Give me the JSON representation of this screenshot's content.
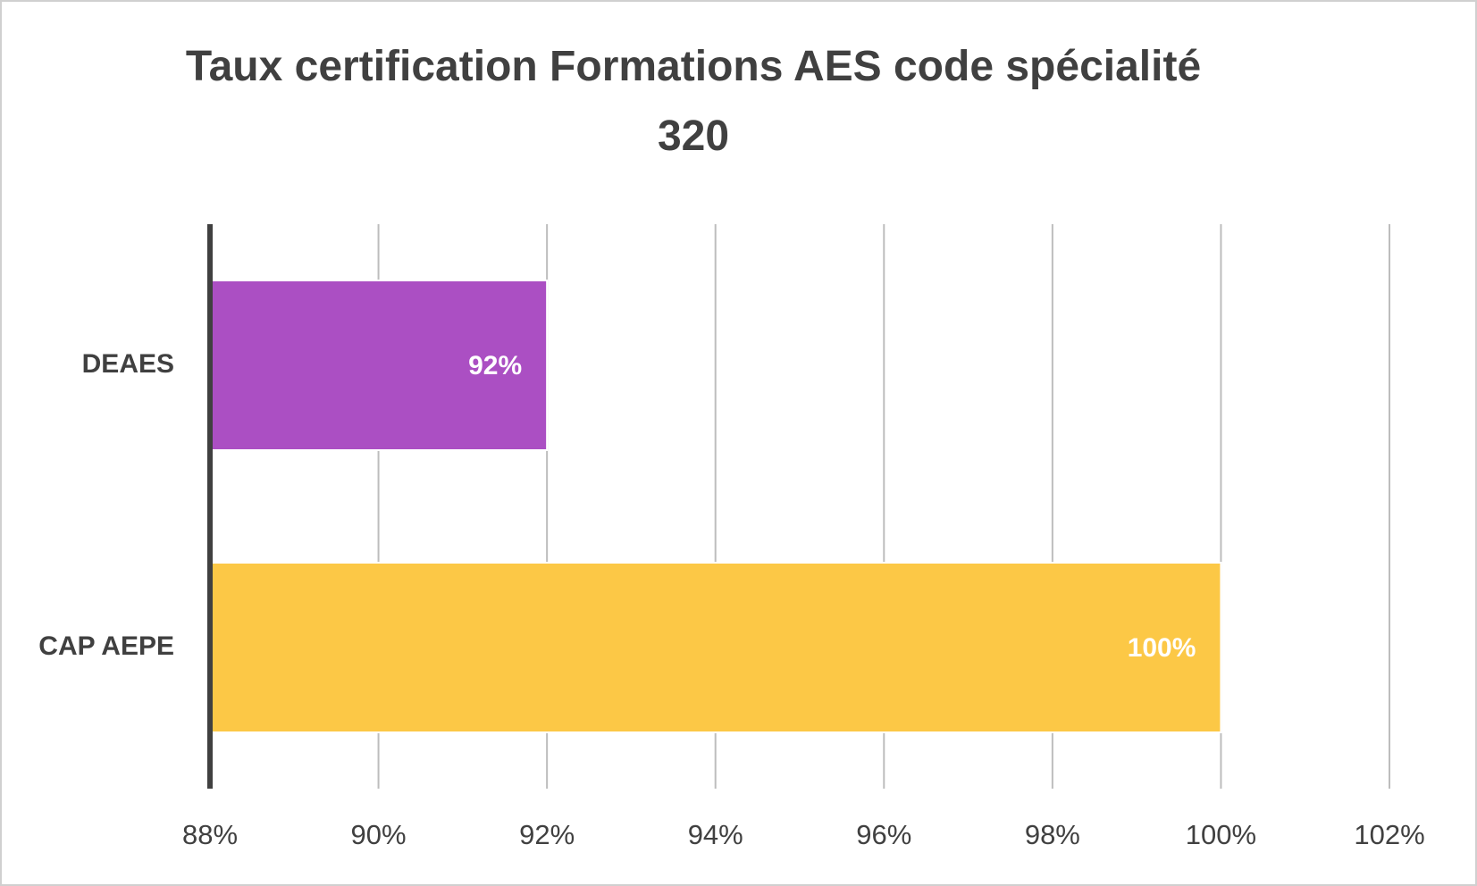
{
  "chart_data": {
    "type": "hbar",
    "title": "Taux certification Formations AES code spécialité 320",
    "categories": [
      "DEAES",
      "CAP AEPE"
    ],
    "values": [
      92,
      100
    ],
    "value_labels": [
      "92%",
      "100%"
    ],
    "colors": [
      "#ab4fc3",
      "#fcc846"
    ],
    "xlim": [
      88,
      102
    ],
    "xticks": [
      {
        "value": 88,
        "label": "88%"
      },
      {
        "value": 90,
        "label": "90%"
      },
      {
        "value": 92,
        "label": "92%"
      },
      {
        "value": 94,
        "label": "94%"
      },
      {
        "value": 96,
        "label": "96%"
      },
      {
        "value": 98,
        "label": "98%"
      },
      {
        "value": 100,
        "label": "100%"
      },
      {
        "value": 102,
        "label": "102%"
      }
    ],
    "grid": true
  }
}
